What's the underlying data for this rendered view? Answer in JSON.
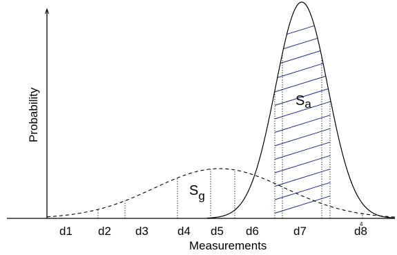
{
  "axis": {
    "ylabel": "Probability",
    "xlabel": "Measurements"
  },
  "labels": {
    "sa_main": "S",
    "sa_sub": "a",
    "sg_main": "S",
    "sg_sub": "g"
  },
  "decision_labels": [
    "d1",
    "d2",
    "d3",
    "d4",
    "d5",
    "d6",
    "d7",
    "d8"
  ],
  "stray_mark": "4"
}
